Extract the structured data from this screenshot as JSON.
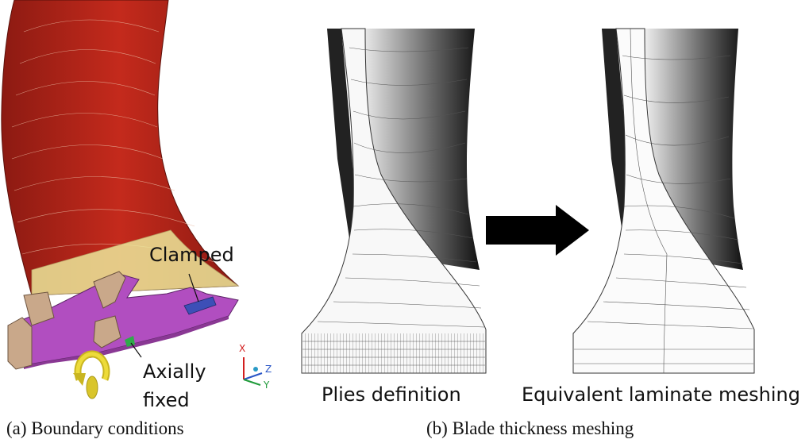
{
  "panel_a": {
    "caption": "(a) Boundary conditions",
    "label_clamped": "Clamped",
    "label_axially_line1": "Axially",
    "label_axially_line2": "fixed",
    "axes": {
      "x": "X",
      "z": "Z",
      "y": "Y"
    },
    "colors": {
      "blade": "#b32418",
      "fillet": "#ece79a",
      "disk": "#b14ec0",
      "clamp": "#3d4fb7",
      "fixed": "#2faa4a",
      "rotation": "#e6d42c"
    }
  },
  "panel_b": {
    "caption": "(b) Blade thickness meshing",
    "left_label": "Plies definition",
    "right_label": "Equivalent laminate meshing"
  }
}
